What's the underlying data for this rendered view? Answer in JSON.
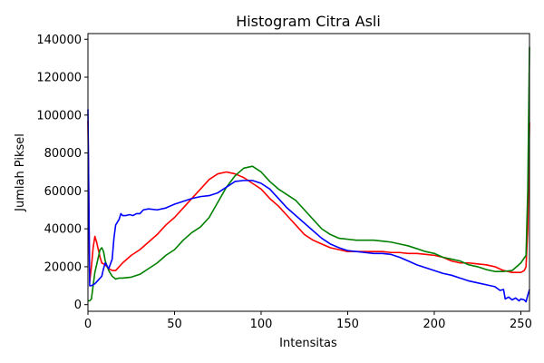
{
  "chart_data": {
    "type": "line",
    "title": "Histogram Citra Asli",
    "xlabel": "Intensitas",
    "ylabel": "Jumlah Piksel",
    "xlim": [
      0,
      255
    ],
    "ylim": [
      -3500,
      143000
    ],
    "xticks": [
      0,
      50,
      100,
      150,
      200,
      250
    ],
    "yticks": [
      0,
      20000,
      40000,
      60000,
      80000,
      100000,
      120000,
      140000
    ],
    "grid": false,
    "legend": "none",
    "series": [
      {
        "color": "#ff0000",
        "points": [
          [
            0,
            97000
          ],
          [
            1,
            12000
          ],
          [
            2,
            20000
          ],
          [
            3,
            30000
          ],
          [
            4,
            36000
          ],
          [
            5,
            33000
          ],
          [
            6,
            29000
          ],
          [
            7,
            25000
          ],
          [
            8,
            22000
          ],
          [
            10,
            21000
          ],
          [
            12,
            19000
          ],
          [
            14,
            18000
          ],
          [
            16,
            18000
          ],
          [
            18,
            20000
          ],
          [
            20,
            22000
          ],
          [
            25,
            26000
          ],
          [
            30,
            29000
          ],
          [
            35,
            33000
          ],
          [
            40,
            37000
          ],
          [
            45,
            42000
          ],
          [
            50,
            46000
          ],
          [
            55,
            51000
          ],
          [
            60,
            56000
          ],
          [
            65,
            61000
          ],
          [
            70,
            66000
          ],
          [
            75,
            69000
          ],
          [
            80,
            70000
          ],
          [
            85,
            69000
          ],
          [
            90,
            67000
          ],
          [
            95,
            64000
          ],
          [
            100,
            61000
          ],
          [
            105,
            56000
          ],
          [
            110,
            52000
          ],
          [
            115,
            47000
          ],
          [
            120,
            42000
          ],
          [
            125,
            37000
          ],
          [
            130,
            34000
          ],
          [
            135,
            32000
          ],
          [
            140,
            30000
          ],
          [
            145,
            29000
          ],
          [
            150,
            28000
          ],
          [
            155,
            28000
          ],
          [
            160,
            28000
          ],
          [
            165,
            28000
          ],
          [
            170,
            28000
          ],
          [
            175,
            27500
          ],
          [
            180,
            27500
          ],
          [
            185,
            27000
          ],
          [
            190,
            27000
          ],
          [
            195,
            26500
          ],
          [
            200,
            26000
          ],
          [
            205,
            25000
          ],
          [
            210,
            23000
          ],
          [
            215,
            22000
          ],
          [
            220,
            22000
          ],
          [
            225,
            21500
          ],
          [
            230,
            21000
          ],
          [
            235,
            20000
          ],
          [
            240,
            18000
          ],
          [
            245,
            17000
          ],
          [
            250,
            17000
          ],
          [
            252,
            18000
          ],
          [
            253,
            20000
          ],
          [
            254,
            40000
          ],
          [
            255,
            96000
          ]
        ]
      },
      {
        "color": "#008000",
        "points": [
          [
            0,
            2000
          ],
          [
            1,
            2000
          ],
          [
            2,
            3000
          ],
          [
            3,
            10000
          ],
          [
            4,
            17000
          ],
          [
            5,
            21000
          ],
          [
            6,
            25000
          ],
          [
            7,
            29000
          ],
          [
            8,
            30000
          ],
          [
            9,
            28000
          ],
          [
            10,
            23000
          ],
          [
            12,
            18000
          ],
          [
            14,
            15000
          ],
          [
            16,
            13500
          ],
          [
            18,
            14000
          ],
          [
            20,
            14000
          ],
          [
            25,
            14500
          ],
          [
            30,
            16000
          ],
          [
            35,
            19000
          ],
          [
            40,
            22000
          ],
          [
            45,
            26000
          ],
          [
            50,
            29000
          ],
          [
            55,
            34000
          ],
          [
            60,
            38000
          ],
          [
            65,
            41000
          ],
          [
            70,
            46000
          ],
          [
            75,
            54000
          ],
          [
            80,
            62000
          ],
          [
            85,
            68000
          ],
          [
            90,
            72000
          ],
          [
            95,
            73000
          ],
          [
            100,
            70000
          ],
          [
            105,
            65000
          ],
          [
            110,
            61000
          ],
          [
            115,
            58000
          ],
          [
            120,
            55000
          ],
          [
            125,
            50000
          ],
          [
            130,
            45000
          ],
          [
            135,
            40000
          ],
          [
            140,
            37000
          ],
          [
            145,
            35000
          ],
          [
            150,
            34500
          ],
          [
            155,
            34000
          ],
          [
            160,
            34000
          ],
          [
            165,
            34000
          ],
          [
            170,
            33500
          ],
          [
            175,
            33000
          ],
          [
            180,
            32000
          ],
          [
            185,
            31000
          ],
          [
            190,
            29500
          ],
          [
            195,
            28000
          ],
          [
            200,
            27000
          ],
          [
            205,
            25000
          ],
          [
            210,
            24000
          ],
          [
            215,
            23000
          ],
          [
            220,
            21000
          ],
          [
            225,
            20000
          ],
          [
            230,
            18500
          ],
          [
            235,
            17500
          ],
          [
            240,
            17500
          ],
          [
            245,
            18000
          ],
          [
            250,
            22000
          ],
          [
            253,
            26000
          ],
          [
            254,
            60000
          ],
          [
            255,
            136000
          ]
        ]
      },
      {
        "color": "#0000ff",
        "points": [
          [
            0,
            103000
          ],
          [
            1,
            10000
          ],
          [
            2,
            10000
          ],
          [
            4,
            11000
          ],
          [
            6,
            13000
          ],
          [
            8,
            15000
          ],
          [
            9,
            19000
          ],
          [
            10,
            22000
          ],
          [
            12,
            19000
          ],
          [
            14,
            24000
          ],
          [
            15,
            35000
          ],
          [
            16,
            42000
          ],
          [
            18,
            45000
          ],
          [
            19,
            48000
          ],
          [
            20,
            47000
          ],
          [
            22,
            47000
          ],
          [
            24,
            47500
          ],
          [
            26,
            47000
          ],
          [
            28,
            48000
          ],
          [
            30,
            48000
          ],
          [
            32,
            50000
          ],
          [
            35,
            50500
          ],
          [
            40,
            50000
          ],
          [
            45,
            51000
          ],
          [
            50,
            53000
          ],
          [
            55,
            54500
          ],
          [
            60,
            56000
          ],
          [
            65,
            57000
          ],
          [
            70,
            57500
          ],
          [
            75,
            59000
          ],
          [
            80,
            62000
          ],
          [
            85,
            65000
          ],
          [
            90,
            65500
          ],
          [
            95,
            65500
          ],
          [
            100,
            64000
          ],
          [
            105,
            61000
          ],
          [
            110,
            56000
          ],
          [
            115,
            51000
          ],
          [
            120,
            47000
          ],
          [
            125,
            43000
          ],
          [
            130,
            39000
          ],
          [
            135,
            35000
          ],
          [
            140,
            32000
          ],
          [
            145,
            30000
          ],
          [
            150,
            28500
          ],
          [
            155,
            28000
          ],
          [
            160,
            27500
          ],
          [
            165,
            27000
          ],
          [
            170,
            27000
          ],
          [
            175,
            26500
          ],
          [
            180,
            25000
          ],
          [
            185,
            23000
          ],
          [
            190,
            21000
          ],
          [
            195,
            19500
          ],
          [
            200,
            18000
          ],
          [
            205,
            16500
          ],
          [
            210,
            15500
          ],
          [
            215,
            14000
          ],
          [
            220,
            12500
          ],
          [
            225,
            11500
          ],
          [
            230,
            10500
          ],
          [
            235,
            9500
          ],
          [
            238,
            7500
          ],
          [
            240,
            8000
          ],
          [
            241,
            3000
          ],
          [
            243,
            4000
          ],
          [
            245,
            2500
          ],
          [
            247,
            3500
          ],
          [
            249,
            2000
          ],
          [
            250,
            3000
          ],
          [
            252,
            2500
          ],
          [
            253,
            1500
          ],
          [
            254,
            5000
          ],
          [
            255,
            8000
          ]
        ]
      }
    ]
  }
}
